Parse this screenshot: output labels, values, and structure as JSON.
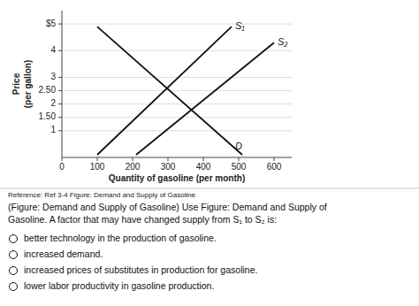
{
  "chart_data": {
    "type": "line",
    "xlabel": "Quantity of gasoline (per month)",
    "ylabel": "Price\n(per gallon)",
    "xlim": [
      0,
      650
    ],
    "ylim": [
      0,
      5.5
    ],
    "xticks": [
      0,
      100,
      200,
      300,
      400,
      500,
      600
    ],
    "yticks": [
      1,
      {
        "value": 1.5,
        "label": "1.50"
      },
      2,
      {
        "value": 2.5,
        "label": "2.50"
      },
      3,
      4,
      {
        "value": 5,
        "label": "$5"
      }
    ],
    "grid": true,
    "series": [
      {
        "name": "D",
        "x": [
          100,
          510
        ],
        "values": [
          4.9,
          0.1
        ],
        "color": "#111111"
      },
      {
        "name": "S₁",
        "x": [
          100,
          480
        ],
        "values": [
          0.1,
          4.9
        ],
        "color": "#111111"
      },
      {
        "name": "S₂",
        "x": [
          210,
          600
        ],
        "values": [
          0.1,
          4.3
        ],
        "color": "#111111"
      }
    ],
    "reference": "Reference: Ref 3-4 Figure: Demand and Supply of Gasoline",
    "question": [
      "(Figure: Demand and Supply of Gasoline) Use Figure: Demand and Supply of",
      "Gasoline. A factor that may have changed supply from S₁ to S₂ is:"
    ],
    "options": [
      "better technology in the production of gasoline.",
      "increased demand.",
      "increased prices of substitutes in production for gasoline.",
      "lower labor productivity in gasoline production."
    ]
  }
}
